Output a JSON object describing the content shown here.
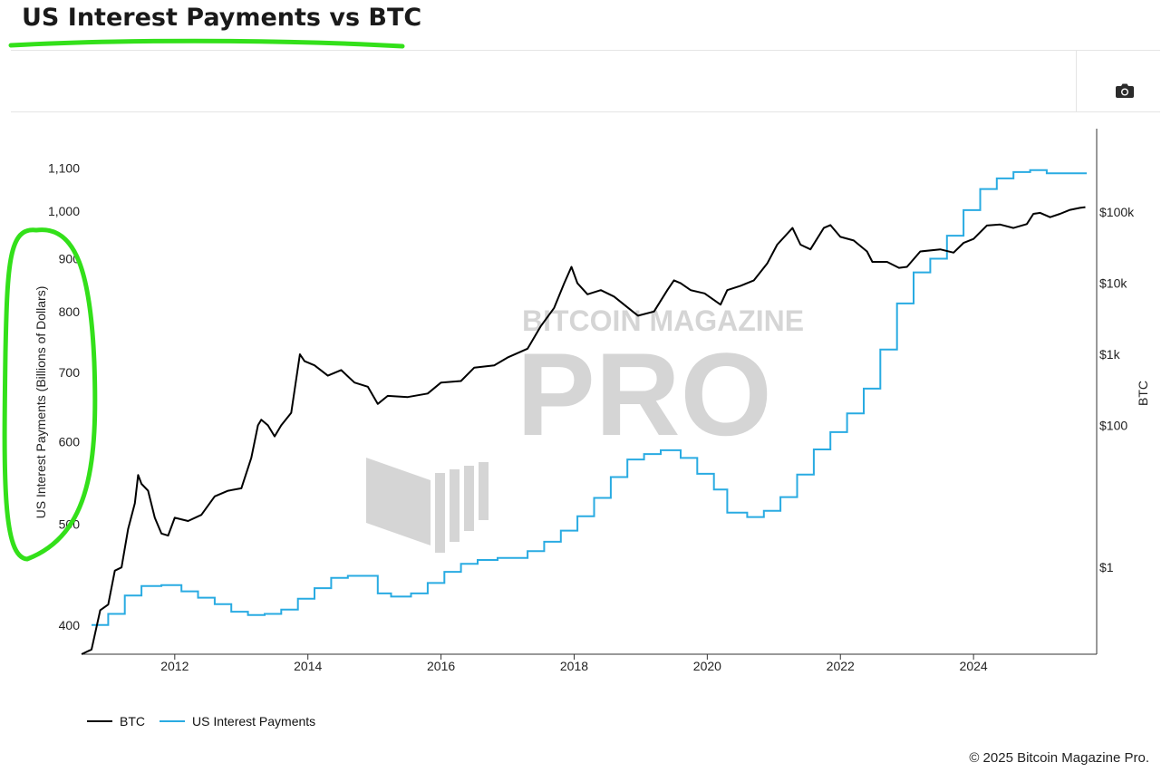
{
  "header": {
    "title": "US Interest Payments vs BTC"
  },
  "toolbar": {
    "camera_icon": "camera-icon"
  },
  "watermark": {
    "line1": "BITCOIN MAGAZINE",
    "line2": "PRO",
    "icon": "bitcoin-magazine-logo-icon"
  },
  "footer": {
    "copyright": "© 2025 Bitcoin Magazine Pro."
  },
  "colors": {
    "btc": "#000000",
    "interest": "#29abe2",
    "highlight": "#33e01a"
  },
  "chart_data": {
    "type": "line",
    "x_ticks": [
      "2012",
      "2014",
      "2016",
      "2018",
      "2020",
      "2022",
      "2024"
    ],
    "x_range": [
      2010.6,
      2025.85
    ],
    "y_left": {
      "label": "US Interest Payments (Billions of Dollars)",
      "scale": "log",
      "ticks": [
        "400",
        "500",
        "600",
        "700",
        "800",
        "900",
        "1,000",
        "1,100"
      ],
      "tick_values": [
        400,
        500,
        600,
        700,
        800,
        900,
        1000,
        1100
      ],
      "range": [
        375,
        1200
      ]
    },
    "y_right": {
      "label": "BTC",
      "scale": "log",
      "ticks": [
        "$1",
        "$100",
        "$1k",
        "$10k",
        "$100k"
      ],
      "tick_values": [
        1,
        100,
        1000,
        10000,
        100000
      ],
      "range": [
        0.06,
        1500000
      ]
    },
    "legend": {
      "placement": "bottom-left"
    },
    "series": [
      {
        "name": "BTC",
        "axis": "right",
        "points": [
          [
            2010.6,
            0.06
          ],
          [
            2010.75,
            0.07
          ],
          [
            2010.88,
            0.25
          ],
          [
            2011.0,
            0.3
          ],
          [
            2011.1,
            0.9
          ],
          [
            2011.2,
            1.0
          ],
          [
            2011.3,
            3.5
          ],
          [
            2011.4,
            8
          ],
          [
            2011.45,
            20
          ],
          [
            2011.5,
            15
          ],
          [
            2011.6,
            12
          ],
          [
            2011.7,
            5
          ],
          [
            2011.8,
            3
          ],
          [
            2011.9,
            2.8
          ],
          [
            2012.0,
            5
          ],
          [
            2012.2,
            4.5
          ],
          [
            2012.4,
            5.5
          ],
          [
            2012.6,
            10
          ],
          [
            2012.8,
            12
          ],
          [
            2013.0,
            13
          ],
          [
            2013.15,
            35
          ],
          [
            2013.25,
            100
          ],
          [
            2013.3,
            120
          ],
          [
            2013.4,
            100
          ],
          [
            2013.5,
            70
          ],
          [
            2013.6,
            100
          ],
          [
            2013.75,
            150
          ],
          [
            2013.88,
            1000
          ],
          [
            2013.95,
            800
          ],
          [
            2014.1,
            700
          ],
          [
            2014.3,
            500
          ],
          [
            2014.5,
            600
          ],
          [
            2014.7,
            400
          ],
          [
            2014.9,
            350
          ],
          [
            2015.05,
            200
          ],
          [
            2015.2,
            260
          ],
          [
            2015.5,
            250
          ],
          [
            2015.8,
            280
          ],
          [
            2016.0,
            400
          ],
          [
            2016.3,
            420
          ],
          [
            2016.5,
            650
          ],
          [
            2016.8,
            700
          ],
          [
            2017.0,
            900
          ],
          [
            2017.3,
            1200
          ],
          [
            2017.5,
            2500
          ],
          [
            2017.7,
            4500
          ],
          [
            2017.85,
            10000
          ],
          [
            2017.96,
            17000
          ],
          [
            2018.05,
            10000
          ],
          [
            2018.2,
            7000
          ],
          [
            2018.4,
            8000
          ],
          [
            2018.6,
            6500
          ],
          [
            2018.88,
            4000
          ],
          [
            2018.96,
            3500
          ],
          [
            2019.2,
            4000
          ],
          [
            2019.4,
            8000
          ],
          [
            2019.5,
            11000
          ],
          [
            2019.6,
            10000
          ],
          [
            2019.75,
            8000
          ],
          [
            2019.96,
            7200
          ],
          [
            2020.2,
            5000
          ],
          [
            2020.3,
            8000
          ],
          [
            2020.5,
            9200
          ],
          [
            2020.7,
            11000
          ],
          [
            2020.9,
            19000
          ],
          [
            2021.05,
            35000
          ],
          [
            2021.28,
            60000
          ],
          [
            2021.4,
            35000
          ],
          [
            2021.55,
            30000
          ],
          [
            2021.75,
            60000
          ],
          [
            2021.85,
            66000
          ],
          [
            2022.0,
            45000
          ],
          [
            2022.2,
            40000
          ],
          [
            2022.4,
            28000
          ],
          [
            2022.48,
            20000
          ],
          [
            2022.7,
            20000
          ],
          [
            2022.88,
            16500
          ],
          [
            2023.0,
            17000
          ],
          [
            2023.2,
            28000
          ],
          [
            2023.5,
            30000
          ],
          [
            2023.7,
            27000
          ],
          [
            2023.85,
            37000
          ],
          [
            2024.0,
            42000
          ],
          [
            2024.2,
            65000
          ],
          [
            2024.4,
            67000
          ],
          [
            2024.6,
            60000
          ],
          [
            2024.8,
            68000
          ],
          [
            2024.9,
            95000
          ],
          [
            2025.0,
            98000
          ],
          [
            2025.15,
            85000
          ],
          [
            2025.3,
            95000
          ],
          [
            2025.45,
            108000
          ],
          [
            2025.6,
            115000
          ],
          [
            2025.68,
            118000
          ]
        ]
      },
      {
        "name": "US Interest Payments",
        "axis": "left",
        "steps": [
          [
            2010.75,
            400
          ],
          [
            2011.0,
            410
          ],
          [
            2011.25,
            427
          ],
          [
            2011.5,
            436
          ],
          [
            2011.8,
            437
          ],
          [
            2012.1,
            431
          ],
          [
            2012.35,
            425
          ],
          [
            2012.6,
            419
          ],
          [
            2012.85,
            412
          ],
          [
            2013.1,
            409
          ],
          [
            2013.35,
            410
          ],
          [
            2013.6,
            414
          ],
          [
            2013.85,
            424
          ],
          [
            2014.1,
            434
          ],
          [
            2014.35,
            444
          ],
          [
            2014.6,
            446
          ],
          [
            2015.05,
            429
          ],
          [
            2015.25,
            426
          ],
          [
            2015.55,
            429
          ],
          [
            2015.8,
            439
          ],
          [
            2016.05,
            450
          ],
          [
            2016.3,
            458
          ],
          [
            2016.55,
            462
          ],
          [
            2016.85,
            464
          ],
          [
            2017.3,
            471
          ],
          [
            2017.55,
            481
          ],
          [
            2017.8,
            493
          ],
          [
            2018.05,
            509
          ],
          [
            2018.3,
            530
          ],
          [
            2018.55,
            555
          ],
          [
            2018.8,
            577
          ],
          [
            2019.05,
            584
          ],
          [
            2019.3,
            589
          ],
          [
            2019.6,
            579
          ],
          [
            2019.85,
            559
          ],
          [
            2020.1,
            540
          ],
          [
            2020.3,
            513
          ],
          [
            2020.6,
            508
          ],
          [
            2020.85,
            515
          ],
          [
            2021.1,
            531
          ],
          [
            2021.35,
            558
          ],
          [
            2021.6,
            590
          ],
          [
            2021.85,
            613
          ],
          [
            2022.1,
            639
          ],
          [
            2022.35,
            675
          ],
          [
            2022.6,
            736
          ],
          [
            2022.85,
            815
          ],
          [
            2023.1,
            873
          ],
          [
            2023.35,
            900
          ],
          [
            2023.6,
            947
          ],
          [
            2023.85,
            1002
          ],
          [
            2024.1,
            1050
          ],
          [
            2024.35,
            1075
          ],
          [
            2024.6,
            1090
          ],
          [
            2024.85,
            1095
          ],
          [
            2025.1,
            1087
          ],
          [
            2025.7,
            1087
          ]
        ]
      }
    ]
  }
}
